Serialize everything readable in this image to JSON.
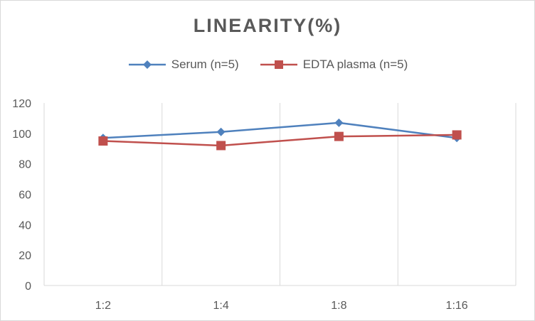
{
  "chart_data": {
    "type": "line",
    "title": "LINEARITY(%)",
    "categories": [
      "1:2",
      "1:4",
      "1:8",
      "1:16"
    ],
    "series": [
      {
        "name": "Serum (n=5)",
        "values": [
          97,
          101,
          107,
          97
        ],
        "color": "#4f81bd",
        "marker": "diamond"
      },
      {
        "name": "EDTA plasma (n=5)",
        "values": [
          95,
          92,
          98,
          99
        ],
        "color": "#c0504d",
        "marker": "square"
      }
    ],
    "yticks": [
      0,
      20,
      40,
      60,
      80,
      100,
      120
    ],
    "ylim": [
      0,
      120
    ],
    "grid": "vertical",
    "legend": "top"
  }
}
